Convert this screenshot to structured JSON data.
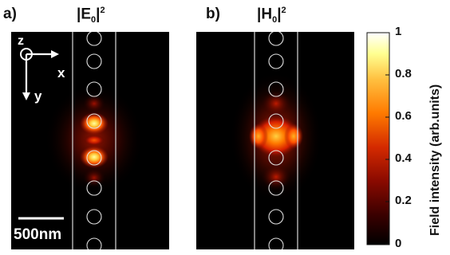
{
  "panels": [
    {
      "tag": "a)",
      "field_letter": "E",
      "subscript": "0",
      "superscript": "2"
    },
    {
      "tag": "b)",
      "field_letter": "H",
      "subscript": "0",
      "superscript": "2"
    }
  ],
  "axes": {
    "z": "z",
    "x": "x",
    "y": "y"
  },
  "scalebar": {
    "label": "500nm"
  },
  "colorbar": {
    "label": "Field intensity (arb.units)",
    "ticks": [
      "1",
      "0.8",
      "0.6",
      "0.4",
      "0.2",
      "0"
    ],
    "colormap": [
      "#000000",
      "#3a0000",
      "#8a0a00",
      "#d42a00",
      "#ff7a00",
      "#ffc040",
      "#ffff90",
      "#ffffff"
    ]
  },
  "colors": {
    "background": "#000000",
    "outline": "#d8d8d8"
  }
}
